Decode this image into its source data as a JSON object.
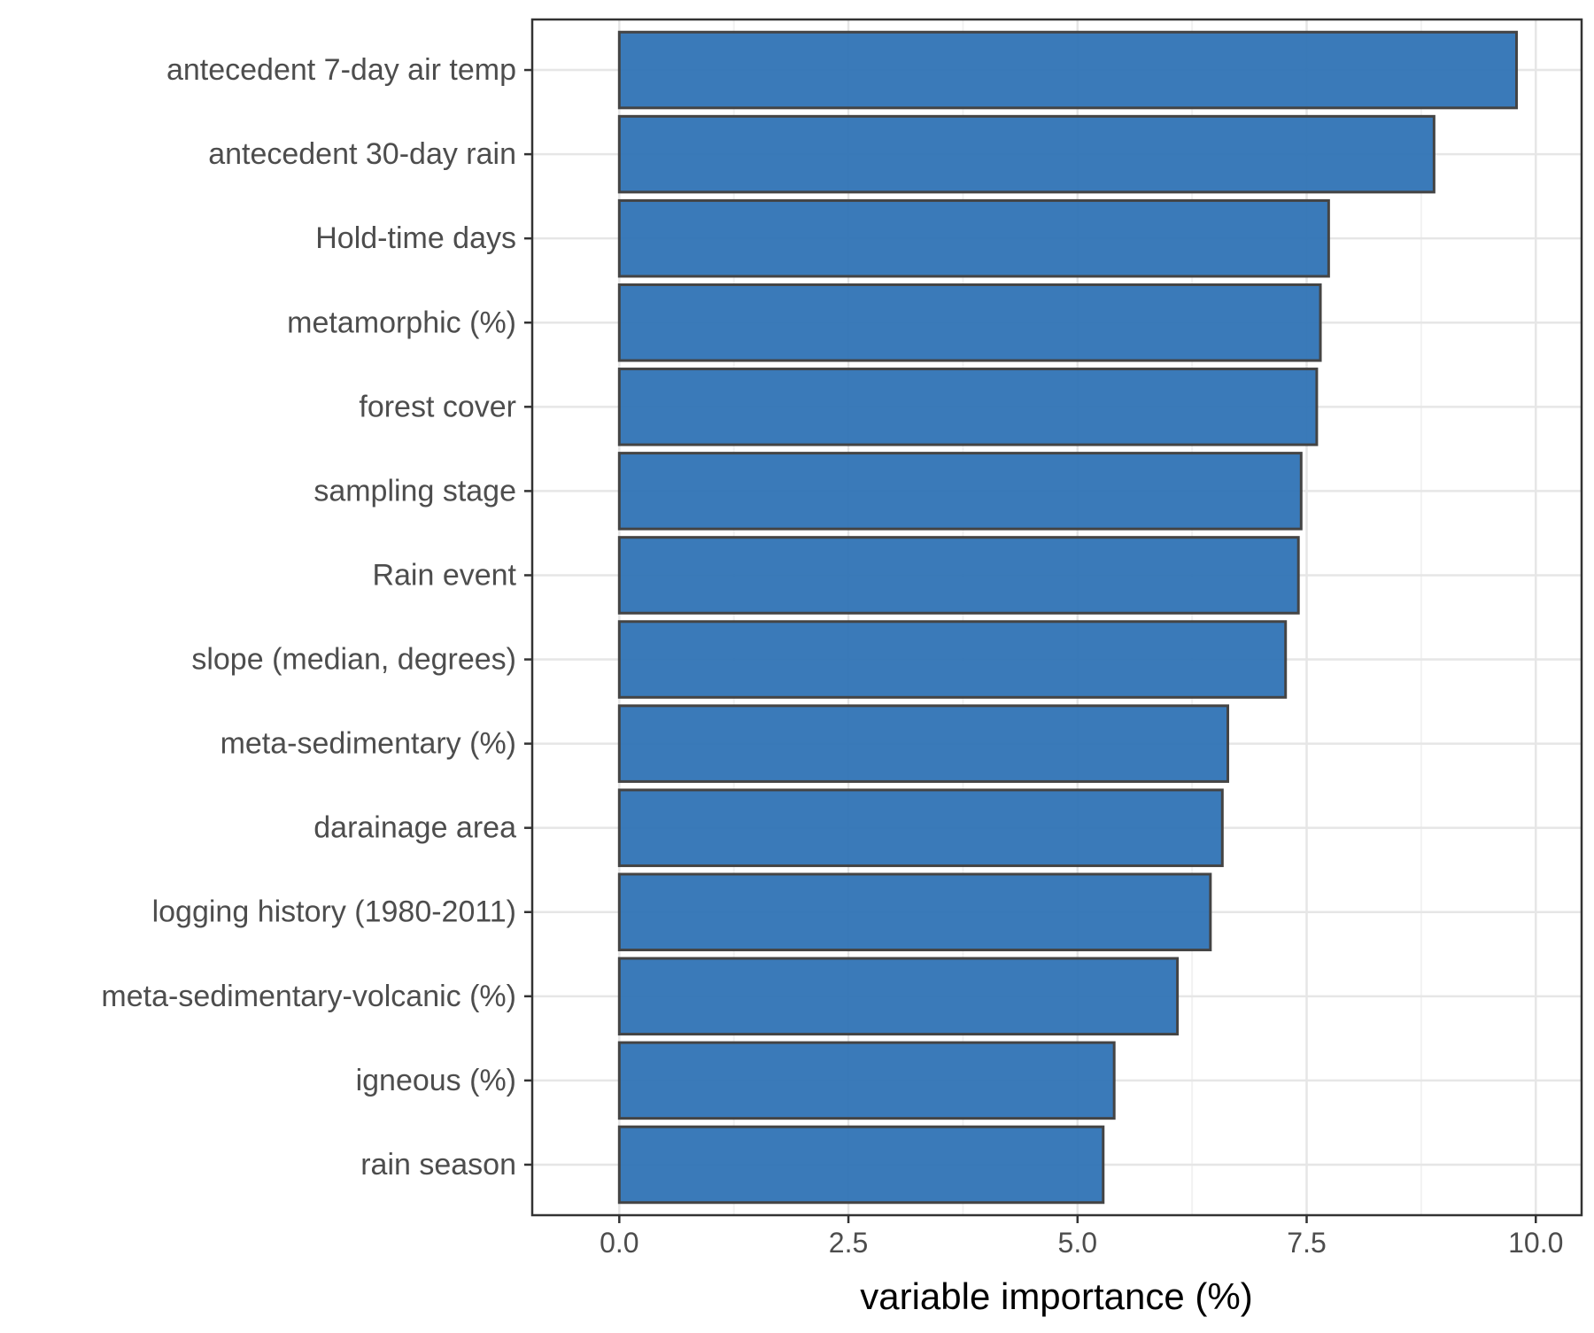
{
  "colors": {
    "bar_fill": "#2f73b5",
    "bar_stroke": "#444444",
    "grid_major": "#e6e6e6",
    "grid_minor": "#f2f2f2",
    "panel_border": "#333333",
    "tick_text": "#4d4d4d"
  },
  "chart_data": {
    "type": "bar",
    "orientation": "horizontal",
    "title": "",
    "xlabel": "variable importance (%)",
    "ylabel": "",
    "xlim": [
      -0.95,
      10.5
    ],
    "x_ticks": [
      0.0,
      2.5,
      5.0,
      7.5,
      10.0
    ],
    "x_tick_labels": [
      "0.0",
      "2.5",
      "5.0",
      "7.5",
      "10.0"
    ],
    "grid": true,
    "categories": [
      "antecedent 7-day air temp",
      "antecedent 30-day rain",
      "Hold-time days",
      "metamorphic (%)",
      "forest cover",
      "sampling stage",
      "Rain event",
      "slope (median, degrees)",
      "meta-sedimentary (%)",
      "darainage area",
      "logging history (1980-2011)",
      "meta-sedimentary-volcanic (%)",
      "igneous (%)",
      "rain season"
    ],
    "values": [
      9.79,
      8.89,
      7.74,
      7.65,
      7.61,
      7.44,
      7.41,
      7.27,
      6.64,
      6.58,
      6.45,
      6.09,
      5.4,
      5.28
    ]
  }
}
